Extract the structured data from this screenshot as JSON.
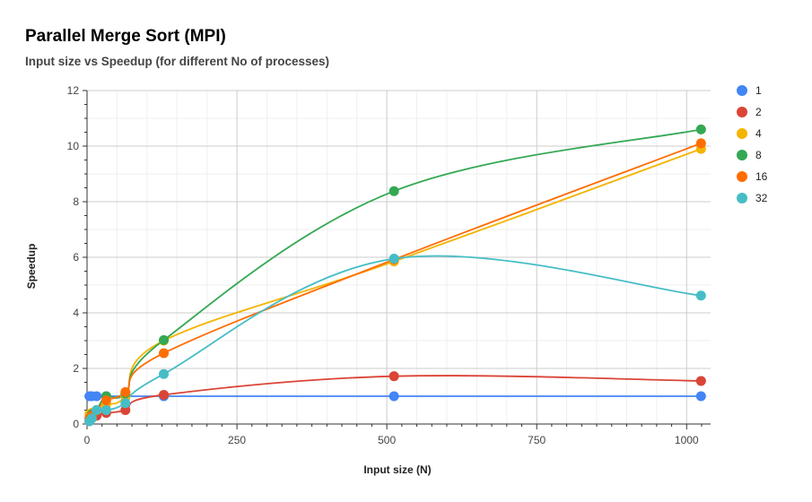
{
  "chart_data": {
    "type": "line",
    "title": "Parallel Merge Sort (MPI)",
    "subtitle": "Input size vs Speedup (for different No of processes)",
    "xlabel": "Input size (N)",
    "ylabel": "Speedup",
    "xlim": [
      0,
      1040
    ],
    "ylim": [
      0,
      12
    ],
    "xticks": [
      0,
      250,
      500,
      750,
      1000
    ],
    "yticks": [
      0,
      2,
      4,
      6,
      8,
      10,
      12
    ],
    "grid": true,
    "legend_position": "right",
    "x": [
      4,
      8,
      16,
      32,
      64,
      128,
      512,
      1024
    ],
    "series": [
      {
        "name": "1",
        "color": "#4285f4",
        "values": [
          1,
          1,
          1,
          1,
          1,
          1,
          1,
          1
        ]
      },
      {
        "name": "2",
        "color": "#db4437",
        "values": [
          0.1,
          0.25,
          0.3,
          0.4,
          0.5,
          1.05,
          1.72,
          1.55
        ]
      },
      {
        "name": "4",
        "color": "#f4b400",
        "values": [
          0.35,
          0.4,
          0.5,
          0.7,
          1.0,
          3.0,
          5.85,
          9.9
        ]
      },
      {
        "name": "8",
        "color": "#34a853",
        "values": [
          0.2,
          0.35,
          0.5,
          1.0,
          1.1,
          3.02,
          8.38,
          10.6
        ]
      },
      {
        "name": "16",
        "color": "#ff6d01",
        "values": [
          0.2,
          0.3,
          0.5,
          0.85,
          1.15,
          2.55,
          5.92,
          10.1
        ]
      },
      {
        "name": "32",
        "color": "#46bdc6",
        "values": [
          0.1,
          0.2,
          0.5,
          0.5,
          0.75,
          1.8,
          5.95,
          4.62
        ]
      }
    ]
  }
}
